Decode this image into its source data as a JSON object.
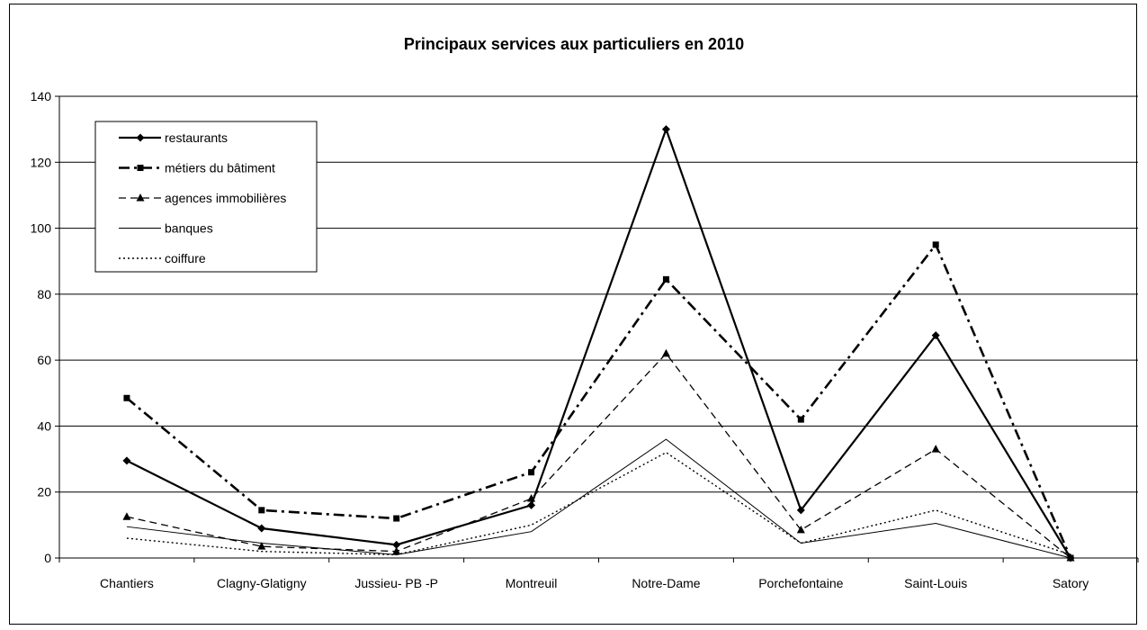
{
  "chart_data": {
    "type": "line",
    "title": "Principaux services aux particuliers en 2010",
    "xlabel": "",
    "ylabel": "",
    "categories": [
      "Chantiers",
      "Clagny-Glatigny",
      "Jussieu- PB -P",
      "Montreuil",
      "Notre-Dame",
      "Porchefontaine",
      "Saint-Louis",
      "Satory"
    ],
    "ylim": [
      0,
      140
    ],
    "yticks": [
      0,
      20,
      40,
      60,
      80,
      100,
      120,
      140
    ],
    "grid": true,
    "legend_position": "top-left",
    "series": [
      {
        "name": "restaurants",
        "values": [
          29.5,
          9,
          4,
          16,
          130,
          14.5,
          67.5,
          0
        ],
        "color": "#000000",
        "line_style": "solid-thick",
        "marker": "diamond"
      },
      {
        "name": "métiers du bâtiment",
        "values": [
          48.5,
          14.5,
          12,
          26,
          84.5,
          42,
          95,
          0
        ],
        "color": "#000000",
        "line_style": "dash-dot-thick",
        "marker": "square"
      },
      {
        "name": "agences immobilières",
        "values": [
          12.5,
          3.5,
          2,
          18,
          62,
          8.5,
          33,
          0
        ],
        "color": "#000000",
        "line_style": "dashed",
        "marker": "triangle"
      },
      {
        "name": "banques",
        "values": [
          9.5,
          4.5,
          1,
          8,
          36,
          4.5,
          10.5,
          0
        ],
        "color": "#000000",
        "line_style": "solid-thin",
        "marker": "none"
      },
      {
        "name": "coiffure",
        "values": [
          6,
          2,
          1,
          10,
          32,
          4.5,
          14.5,
          1
        ],
        "color": "#000000",
        "line_style": "dotted",
        "marker": "none"
      }
    ]
  }
}
